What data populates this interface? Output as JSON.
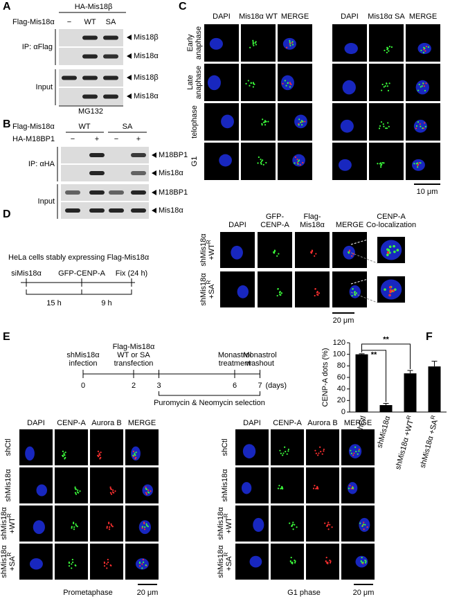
{
  "panel_a": {
    "label": "A",
    "construct": "HA-Mis18β",
    "row_label": "Flag-Mis18α",
    "lanes": [
      "−",
      "WT",
      "SA"
    ],
    "blots": [
      {
        "group": "IP: αFlag",
        "bands": [
          "Mis18β",
          "Mis18α"
        ]
      },
      {
        "group": "Input",
        "bands": [
          "Mis18β",
          "Mis18α"
        ]
      }
    ],
    "treatment": "MG132"
  },
  "panel_b": {
    "label": "B",
    "row1_label": "Flag-Mis18α",
    "groups": [
      "WT",
      "SA"
    ],
    "row2_label": "HA-M18BP1",
    "signs": [
      "−",
      "+",
      "−",
      "+"
    ],
    "blots": [
      {
        "group": "IP: αHA",
        "bands": [
          "M18BP1",
          "Mis18α"
        ]
      },
      {
        "group": "Input",
        "bands": [
          "M18BP1",
          "Mis18α"
        ]
      }
    ]
  },
  "panel_c": {
    "label": "C",
    "columns": [
      "DAPI",
      "Mis18α WT",
      "MERGE",
      "DAPI",
      "Mis18α SA",
      "MERGE"
    ],
    "rows": [
      {
        "lines": [
          "Early",
          "anaphase"
        ]
      },
      {
        "lines": [
          "Late",
          "anaphase"
        ]
      },
      {
        "lines": [
          "telophase"
        ]
      },
      {
        "lines": [
          "G1"
        ]
      }
    ],
    "scale": "10 μm"
  },
  "panel_d": {
    "label": "D",
    "caption": "HeLa cells stably expressing Flag-Mis18α",
    "timeline": {
      "events": [
        "siMis18α",
        "GFP-CENP-A",
        "Fix (24 h)"
      ],
      "intervals": [
        "15 h",
        "9 h"
      ]
    },
    "columns": [
      [
        "DAPI"
      ],
      [
        "GFP-",
        "CENP-A"
      ],
      [
        "Flag-",
        "Mis18α"
      ],
      [
        "MERGE"
      ],
      [
        "CENP-A",
        "Co-localization"
      ]
    ],
    "rows": [
      {
        "lines": [
          "shMis18α",
          "+WT"
        ],
        "sup": "R"
      },
      {
        "lines": [
          "shMis18α",
          "+SA"
        ],
        "sup": "R"
      }
    ],
    "scale": "20 μm"
  },
  "panel_e": {
    "label": "E",
    "timeline": {
      "ticks": [
        {
          "day": 0,
          "above": [
            "shMis18α",
            "infection"
          ]
        },
        {
          "day": 2,
          "above": [
            "Flag-Mis18α",
            "WT or SA",
            "transfection"
          ]
        },
        {
          "day": 3
        },
        {
          "day": 6,
          "above": [
            "Monastrol",
            "treatment"
          ]
        },
        {
          "day": 7,
          "above": [
            "Monastrol",
            "washout"
          ]
        }
      ],
      "unit": "(days)",
      "selection": "Puromycin & Neomycin selection"
    },
    "columns": [
      "DAPI",
      "CENP-A",
      "Aurora B",
      "MERGE"
    ],
    "rows": [
      {
        "lines": [
          "shCtl"
        ]
      },
      {
        "lines": [
          "shMis18α"
        ]
      },
      {
        "lines": [
          "shMis18α",
          "+WT"
        ],
        "sup": "R"
      },
      {
        "lines": [
          "shMis18α",
          "+SA"
        ],
        "sup": "R"
      }
    ],
    "phases": [
      "Prometaphase",
      "G1 phase"
    ],
    "scale": "20 μm"
  },
  "chart_data": {
    "type": "bar",
    "label": "F",
    "y_label": "CENP-A dots (%)",
    "categories": [
      "shCtl",
      "shMis18α",
      "shMis18α +WT",
      "shMis18α +SA"
    ],
    "category_superscripts": [
      null,
      null,
      "R",
      "R"
    ],
    "values": [
      100,
      12,
      67,
      79
    ],
    "errors": [
      1,
      3,
      5,
      9
    ],
    "color": "#000000",
    "ylim": [
      0,
      120
    ],
    "yticks": [
      0,
      20,
      40,
      60,
      80,
      100,
      120
    ],
    "annotations": [
      "**",
      "**"
    ]
  }
}
